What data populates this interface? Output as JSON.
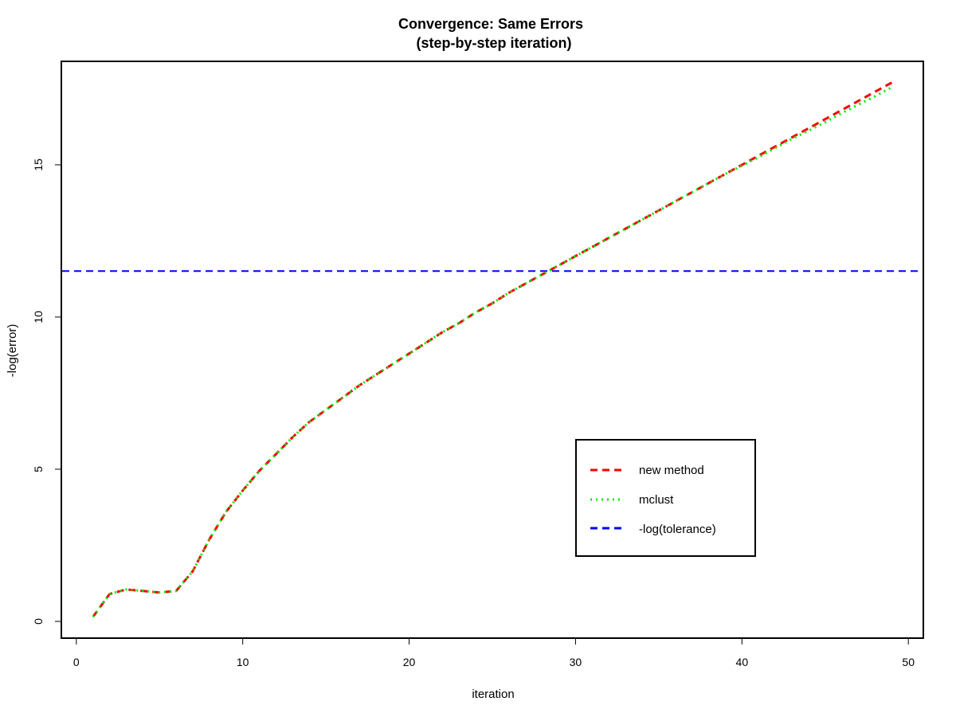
{
  "chart_data": {
    "type": "line",
    "title": "Convergence: Same Errors",
    "subtitle": "(step-by-step iteration)",
    "xlabel": "iteration",
    "ylabel": "-log(error)",
    "xlim": [
      -0.9,
      50.9
    ],
    "ylim": [
      -0.55,
      18.4
    ],
    "xticks": [
      0,
      10,
      20,
      30,
      40,
      50
    ],
    "yticks": [
      0,
      5,
      10,
      15
    ],
    "grid": false,
    "legend_position": "bottom-right",
    "x": [
      1,
      2,
      3,
      4,
      5,
      6,
      7,
      8,
      9,
      10,
      11,
      12,
      13,
      14,
      15,
      16,
      17,
      18,
      19,
      20,
      21,
      22,
      23,
      24,
      25,
      26,
      27,
      28,
      29,
      30,
      31,
      32,
      33,
      34,
      35,
      36,
      37,
      38,
      39,
      40,
      41,
      42,
      43,
      44,
      45,
      46,
      47,
      48,
      49
    ],
    "series": [
      {
        "name": "new method",
        "color": "#ff0000",
        "dash": "dashed",
        "values": [
          0.15,
          0.9,
          1.05,
          1.0,
          0.95,
          1.0,
          1.65,
          2.7,
          3.6,
          4.3,
          4.95,
          5.5,
          6.05,
          6.55,
          6.95,
          7.35,
          7.75,
          8.1,
          8.45,
          8.8,
          9.15,
          9.5,
          9.8,
          10.15,
          10.45,
          10.8,
          11.1,
          11.4,
          11.7,
          12.0,
          12.3,
          12.6,
          12.9,
          13.2,
          13.5,
          13.8,
          14.1,
          14.4,
          14.7,
          15.0,
          15.3,
          15.6,
          15.9,
          16.2,
          16.5,
          16.8,
          17.1,
          17.4,
          17.7
        ]
      },
      {
        "name": "mclust",
        "color": "#00ee00",
        "dash": "dotted",
        "values": [
          0.15,
          0.9,
          1.05,
          1.0,
          0.95,
          1.0,
          1.65,
          2.7,
          3.6,
          4.3,
          4.95,
          5.5,
          6.05,
          6.55,
          6.95,
          7.35,
          7.75,
          8.1,
          8.45,
          8.8,
          9.15,
          9.5,
          9.8,
          10.15,
          10.45,
          10.8,
          11.1,
          11.4,
          11.7,
          12.0,
          12.3,
          12.6,
          12.9,
          13.2,
          13.5,
          13.8,
          14.1,
          14.4,
          14.7,
          14.97,
          15.25,
          15.55,
          15.85,
          16.12,
          16.4,
          16.7,
          16.98,
          17.25,
          17.55
        ]
      }
    ],
    "hlines": [
      {
        "name": "-log(tolerance)",
        "y": 11.51,
        "color": "#0000ff",
        "dash": "dashed"
      }
    ]
  }
}
